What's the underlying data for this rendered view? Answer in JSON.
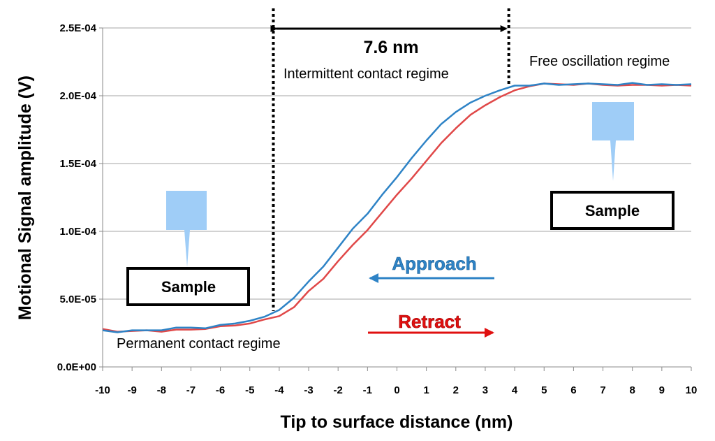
{
  "chart_data": {
    "type": "line",
    "title": "",
    "xlabel": "Tip to surface distance (nm)",
    "ylabel": "Motional Signal amplitude (V)",
    "xlim": [
      -10,
      10
    ],
    "ylim": [
      0,
      0.00025
    ],
    "x_ticks": [
      "-10",
      "-9",
      "-8",
      "-7",
      "-6",
      "-5",
      "-4",
      "-3",
      "-2",
      "-1",
      "0",
      "1",
      "2",
      "3",
      "4",
      "5",
      "6",
      "7",
      "8",
      "9",
      "10"
    ],
    "y_ticks": [
      {
        "value": 0,
        "label": "0.0E+00"
      },
      {
        "value": 5e-05,
        "label": "5.0E-05"
      },
      {
        "value": 0.0001,
        "label": "1.0E-04"
      },
      {
        "value": 0.00015,
        "label": "1.5E-04"
      },
      {
        "value": 0.0002,
        "label": "2.0E-04"
      },
      {
        "value": 0.00025,
        "label": "2.5E-04"
      }
    ],
    "grid": "horizontal",
    "series": [
      {
        "name": "Approach",
        "color": "#2e83c6",
        "x": [
          -10,
          -9.5,
          -9,
          -8.5,
          -8,
          -7.5,
          -7,
          -6.5,
          -6,
          -5.5,
          -5,
          -4.5,
          -4,
          -3.5,
          -3,
          -2.5,
          -2,
          -1.5,
          -1,
          -0.5,
          0,
          0.5,
          1,
          1.5,
          2,
          2.5,
          3,
          3.5,
          4,
          4.5,
          5,
          5.5,
          6,
          6.5,
          7,
          7.5,
          8,
          8.5,
          9,
          9.5,
          10
        ],
        "y": [
          2.7e-05,
          2.55e-05,
          2.7e-05,
          2.7e-05,
          2.7e-05,
          2.9e-05,
          2.9e-05,
          2.85e-05,
          3.1e-05,
          3.2e-05,
          3.4e-05,
          3.7e-05,
          4.2e-05,
          5.1e-05,
          6.3e-05,
          7.4e-05,
          8.8e-05,
          0.000102,
          0.000113,
          0.000127,
          0.00014,
          0.000154,
          0.000167,
          0.000179,
          0.000188,
          0.000195,
          0.0002,
          0.000204,
          0.0002075,
          0.0002075,
          0.000209,
          0.000208,
          0.0002085,
          0.000209,
          0.0002085,
          0.000208,
          0.0002095,
          0.000208,
          0.0002085,
          0.000208,
          0.0002085
        ]
      },
      {
        "name": "Retract",
        "color": "#e04848",
        "x": [
          -10,
          -9.5,
          -9,
          -8.5,
          -8,
          -7.5,
          -7,
          -6.5,
          -6,
          -5.5,
          -5,
          -4.5,
          -4,
          -3.5,
          -3,
          -2.5,
          -2,
          -1.5,
          -1,
          -0.5,
          0,
          0.5,
          1,
          1.5,
          2,
          2.5,
          3,
          3.5,
          4,
          4.5,
          5,
          5.5,
          6,
          6.5,
          7,
          7.5,
          8,
          8.5,
          9,
          9.5,
          10
        ],
        "y": [
          2.8e-05,
          2.6e-05,
          2.65e-05,
          2.7e-05,
          2.6e-05,
          2.75e-05,
          2.75e-05,
          2.8e-05,
          3e-05,
          3.05e-05,
          3.2e-05,
          3.5e-05,
          3.75e-05,
          4.4e-05,
          5.6e-05,
          6.5e-05,
          7.8e-05,
          9e-05,
          0.000101,
          0.000114,
          0.000127,
          0.000139,
          0.000152,
          0.000165,
          0.000176,
          0.000186,
          0.000193,
          0.000199,
          0.000204,
          0.000207,
          0.000209,
          0.0002085,
          0.000208,
          0.000209,
          0.000208,
          0.0002075,
          0.000208,
          0.000208,
          0.0002075,
          0.000208,
          0.0002075
        ]
      }
    ],
    "vertical_markers": [
      -4.2,
      3.8
    ],
    "dimension_label": "7.6 nm",
    "annotations": {
      "intermittent": "Intermittent contact regime",
      "free": "Free oscillation regime",
      "permanent": "Permanent contact regime",
      "approach": "Approach",
      "retract": "Retract",
      "sample": "Sample"
    }
  }
}
